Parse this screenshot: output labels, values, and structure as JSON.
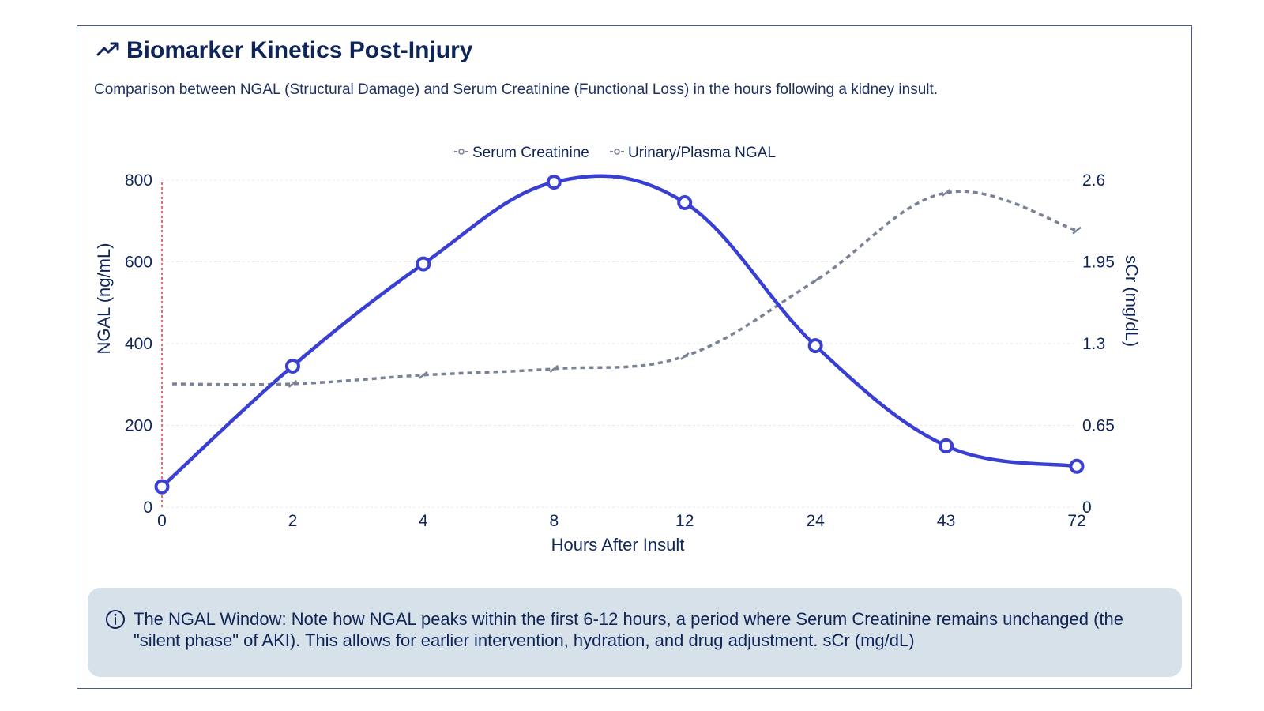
{
  "header": {
    "title": "Biomarker Kinetics Post-Injury",
    "subtitle": "Comparison between NGAL (Structural Damage) and Serum Creatinine (Functional Loss) in the hours following a kidney insult."
  },
  "note": {
    "text": "The NGAL Window: Note how NGAL peaks within the first 6-12 hours, a period where Serum Creatinine remains unchanged (the \"silent phase\" of AKI). This allows for earlier intervention, hydration, and drug adjustment. sCr (mg/dL)"
  },
  "colors": {
    "ngal": "#3a3fd4",
    "creatinine": "#7a8396",
    "text": "#0f2557",
    "injury_marker": "#e0413a",
    "grid": "#e6e8ee"
  },
  "chart_data": {
    "type": "line",
    "xlabel": "Hours After Insult",
    "ylabel": "NGAL (ng/mL)",
    "y2label": "sCr (mg/dL)",
    "categories": [
      "0",
      "2",
      "4",
      "8",
      "12",
      "24",
      "43",
      "72"
    ],
    "ylim": [
      0,
      800
    ],
    "y_ticks": [
      "0",
      "200",
      "400",
      "600",
      "800"
    ],
    "y2lim": [
      0,
      2.6
    ],
    "y2_ticks": [
      "0",
      "0.65",
      "1.3",
      "1.95",
      "2.6"
    ],
    "legend_position": "top-center",
    "series": [
      {
        "name": "Serum Creatinine",
        "axis": "right",
        "style": "dashed",
        "values": [
          0.98,
          0.98,
          1.05,
          1.1,
          1.2,
          1.8,
          2.5,
          2.2
        ]
      },
      {
        "name": "Urinary/Plasma NGAL",
        "axis": "left",
        "style": "solid",
        "values": [
          50,
          345,
          595,
          795,
          745,
          395,
          150,
          100
        ]
      }
    ],
    "annotations": [
      "vertical marker at 0 hours (time of insult)"
    ]
  }
}
